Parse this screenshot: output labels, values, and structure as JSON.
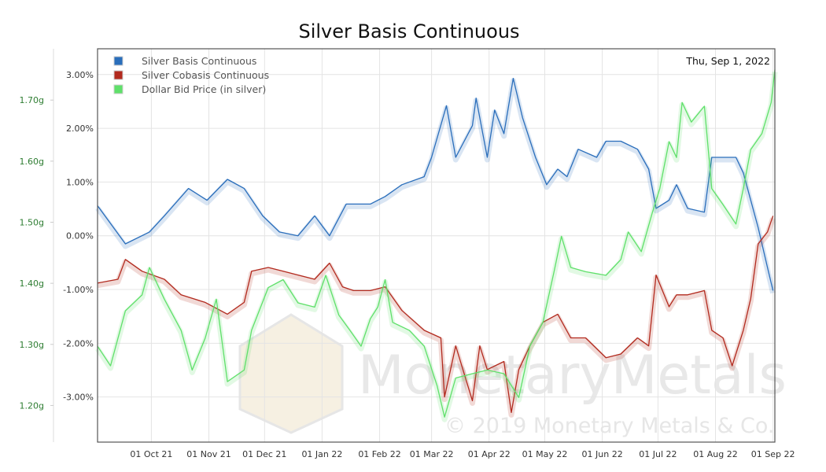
{
  "chart_data": {
    "type": "line",
    "title": "Silver Basis Continuous",
    "date_label": "Thu, Sep 1, 2022",
    "watermark": "MonetaryMetals",
    "copyright": "© 2019 Monetary Metals & Co.",
    "x_unit": "days since 2021-09-02",
    "xlim": [
      0,
      365
    ],
    "x_ticks": [
      {
        "day": 29,
        "label": "01 Oct 21"
      },
      {
        "day": 60,
        "label": "01 Nov 21"
      },
      {
        "day": 90,
        "label": "01 Dec 21"
      },
      {
        "day": 121,
        "label": "01 Jan 22"
      },
      {
        "day": 152,
        "label": "01 Feb 22"
      },
      {
        "day": 180,
        "label": "01 Mar 22"
      },
      {
        "day": 211,
        "label": "01 Apr 22"
      },
      {
        "day": 241,
        "label": "01 May 22"
      },
      {
        "day": 272,
        "label": "01 Jun 22"
      },
      {
        "day": 302,
        "label": "01 Jul 22"
      },
      {
        "day": 333,
        "label": "01 Aug 22"
      },
      {
        "day": 364,
        "label": "01 Sep 22"
      }
    ],
    "y_left_inner": {
      "ylim": [
        -3.84,
        3.48
      ],
      "ticks": [
        3,
        2,
        1,
        0,
        -1,
        -2,
        -3
      ],
      "labels": [
        "3.00%",
        "2.00%",
        "1.00%",
        "0.00%",
        "-1.00%",
        "-2.00%",
        "-3.00%"
      ]
    },
    "y_left_outer": {
      "ylim": [
        1.14,
        1.784
      ],
      "ticks": [
        1.7,
        1.6,
        1.5,
        1.4,
        1.3,
        1.2
      ],
      "labels": [
        "1.70g",
        "1.60g",
        "1.50g",
        "1.40g",
        "1.30g",
        "1.20g"
      ]
    },
    "legend_position": "top-left",
    "series": [
      {
        "name": "Silver Basis Continuous",
        "color": "#2a6ebb",
        "axis": "pct",
        "points": [
          [
            0,
            0.56
          ],
          [
            15,
            -0.15
          ],
          [
            28,
            0.07
          ],
          [
            36,
            0.37
          ],
          [
            49,
            0.88
          ],
          [
            59,
            0.66
          ],
          [
            70,
            1.05
          ],
          [
            79,
            0.88
          ],
          [
            89,
            0.37
          ],
          [
            98,
            0.07
          ],
          [
            108,
            0
          ],
          [
            117,
            0.37
          ],
          [
            125,
            0
          ],
          [
            134,
            0.59
          ],
          [
            147,
            0.59
          ],
          [
            155,
            0.73
          ],
          [
            164,
            0.95
          ],
          [
            176,
            1.1
          ],
          [
            180,
            1.46
          ],
          [
            188,
            2.42
          ],
          [
            193,
            1.46
          ],
          [
            202,
            2.05
          ],
          [
            204,
            2.56
          ],
          [
            210,
            1.46
          ],
          [
            214,
            2.34
          ],
          [
            219,
            1.9
          ],
          [
            224,
            2.93
          ],
          [
            229,
            2.2
          ],
          [
            236,
            1.46
          ],
          [
            242,
            0.95
          ],
          [
            248,
            1.24
          ],
          [
            253,
            1.1
          ],
          [
            259,
            1.61
          ],
          [
            269,
            1.46
          ],
          [
            274,
            1.76
          ],
          [
            282,
            1.76
          ],
          [
            291,
            1.61
          ],
          [
            297,
            1.24
          ],
          [
            301,
            0.51
          ],
          [
            308,
            0.66
          ],
          [
            312,
            0.95
          ],
          [
            318,
            0.51
          ],
          [
            327,
            0.44
          ],
          [
            331,
            1.46
          ],
          [
            337,
            1.46
          ],
          [
            344,
            1.46
          ],
          [
            348,
            1.17
          ],
          [
            356,
            0.15
          ],
          [
            361,
            -0.59
          ],
          [
            364,
            -1.02
          ]
        ]
      },
      {
        "name": "Silver Cobasis Continuous",
        "color": "#b22a1e",
        "axis": "pct",
        "points": [
          [
            0,
            -0.88
          ],
          [
            11,
            -0.81
          ],
          [
            15,
            -0.44
          ],
          [
            24,
            -0.66
          ],
          [
            36,
            -0.81
          ],
          [
            45,
            -1.1
          ],
          [
            58,
            -1.24
          ],
          [
            70,
            -1.46
          ],
          [
            79,
            -1.24
          ],
          [
            83,
            -0.66
          ],
          [
            92,
            -0.59
          ],
          [
            100,
            -0.66
          ],
          [
            108,
            -0.73
          ],
          [
            117,
            -0.81
          ],
          [
            125,
            -0.51
          ],
          [
            132,
            -0.95
          ],
          [
            138,
            -1.02
          ],
          [
            147,
            -1.02
          ],
          [
            155,
            -0.95
          ],
          [
            164,
            -1.39
          ],
          [
            176,
            -1.76
          ],
          [
            185,
            -1.9
          ],
          [
            187,
            -3.0
          ],
          [
            193,
            -2.05
          ],
          [
            202,
            -3.07
          ],
          [
            206,
            -2.05
          ],
          [
            210,
            -2.49
          ],
          [
            219,
            -2.34
          ],
          [
            223,
            -3.29
          ],
          [
            227,
            -2.49
          ],
          [
            233,
            -2.05
          ],
          [
            240,
            -1.61
          ],
          [
            248,
            -1.46
          ],
          [
            255,
            -1.9
          ],
          [
            263,
            -1.9
          ],
          [
            274,
            -2.27
          ],
          [
            282,
            -2.2
          ],
          [
            291,
            -1.9
          ],
          [
            297,
            -2.05
          ],
          [
            301,
            -0.73
          ],
          [
            308,
            -1.32
          ],
          [
            312,
            -1.1
          ],
          [
            318,
            -1.1
          ],
          [
            327,
            -1.02
          ],
          [
            331,
            -1.76
          ],
          [
            337,
            -1.9
          ],
          [
            342,
            -2.42
          ],
          [
            348,
            -1.76
          ],
          [
            352,
            -1.17
          ],
          [
            356,
            -0.15
          ],
          [
            361,
            0.07
          ],
          [
            364,
            0.37
          ]
        ]
      },
      {
        "name": "Dollar Bid Price (in silver)",
        "color": "#5fe06a",
        "axis": "g",
        "points": [
          [
            0,
            1.297
          ],
          [
            7,
            1.265
          ],
          [
            15,
            1.355
          ],
          [
            24,
            1.381
          ],
          [
            28,
            1.426
          ],
          [
            36,
            1.374
          ],
          [
            45,
            1.323
          ],
          [
            51,
            1.258
          ],
          [
            58,
            1.31
          ],
          [
            64,
            1.374
          ],
          [
            70,
            1.239
          ],
          [
            79,
            1.258
          ],
          [
            83,
            1.323
          ],
          [
            92,
            1.393
          ],
          [
            100,
            1.406
          ],
          [
            108,
            1.368
          ],
          [
            117,
            1.361
          ],
          [
            123,
            1.413
          ],
          [
            130,
            1.348
          ],
          [
            136,
            1.323
          ],
          [
            142,
            1.297
          ],
          [
            147,
            1.342
          ],
          [
            151,
            1.361
          ],
          [
            155,
            1.406
          ],
          [
            159,
            1.336
          ],
          [
            168,
            1.323
          ],
          [
            176,
            1.297
          ],
          [
            183,
            1.232
          ],
          [
            187,
            1.181
          ],
          [
            193,
            1.245
          ],
          [
            202,
            1.252
          ],
          [
            210,
            1.258
          ],
          [
            219,
            1.252
          ],
          [
            227,
            1.213
          ],
          [
            233,
            1.297
          ],
          [
            240,
            1.336
          ],
          [
            246,
            1.419
          ],
          [
            250,
            1.477
          ],
          [
            255,
            1.426
          ],
          [
            263,
            1.419
          ],
          [
            274,
            1.413
          ],
          [
            282,
            1.439
          ],
          [
            286,
            1.484
          ],
          [
            293,
            1.452
          ],
          [
            299,
            1.516
          ],
          [
            303,
            1.555
          ],
          [
            308,
            1.632
          ],
          [
            312,
            1.606
          ],
          [
            315,
            1.696
          ],
          [
            320,
            1.664
          ],
          [
            327,
            1.69
          ],
          [
            331,
            1.555
          ],
          [
            337,
            1.529
          ],
          [
            344,
            1.497
          ],
          [
            348,
            1.555
          ],
          [
            352,
            1.619
          ],
          [
            358,
            1.645
          ],
          [
            363,
            1.696
          ],
          [
            365,
            1.75
          ]
        ]
      }
    ]
  }
}
